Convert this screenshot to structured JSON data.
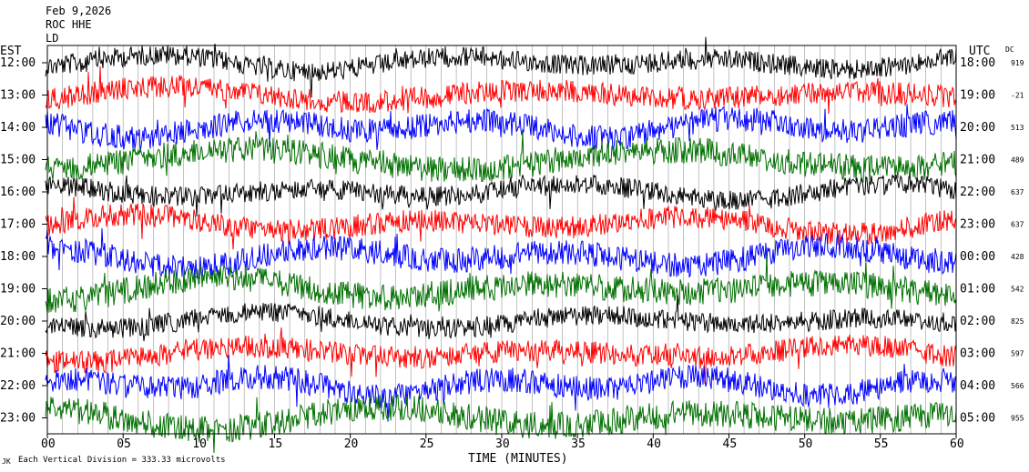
{
  "header": {
    "date": "Feb 9,2026",
    "station": "ROC HHE",
    "network": "LD"
  },
  "chart_data": {
    "type": "line",
    "title": "",
    "xlabel": "TIME (MINUTES)",
    "ylabel_left": "EST",
    "ylabel_right": "UTC",
    "dc_label": "DC",
    "xlim": [
      0,
      60
    ],
    "x_ticks": [
      "00",
      "05",
      "10",
      "15",
      "20",
      "25",
      "30",
      "35",
      "40",
      "45",
      "50",
      "55",
      "60"
    ],
    "trace_colors": [
      "#000000",
      "#ff0000",
      "#0000ff",
      "#007000"
    ],
    "rows": [
      {
        "est": "12:00",
        "utc": "18:00",
        "dc": "919"
      },
      {
        "est": "13:00",
        "utc": "19:00",
        "dc": "-21"
      },
      {
        "est": "14:00",
        "utc": "20:00",
        "dc": "513"
      },
      {
        "est": "15:00",
        "utc": "21:00",
        "dc": "489"
      },
      {
        "est": "16:00",
        "utc": "22:00",
        "dc": "637"
      },
      {
        "est": "17:00",
        "utc": "23:00",
        "dc": "637"
      },
      {
        "est": "18:00",
        "utc": "00:00",
        "dc": "428"
      },
      {
        "est": "19:00",
        "utc": "01:00",
        "dc": "542"
      },
      {
        "est": "20:00",
        "utc": "02:00",
        "dc": "825"
      },
      {
        "est": "21:00",
        "utc": "03:00",
        "dc": "597"
      },
      {
        "est": "22:00",
        "utc": "04:00",
        "dc": "566"
      },
      {
        "est": "23:00",
        "utc": "05:00",
        "dc": "955"
      }
    ],
    "scale_note": "Each Vertical Division = 333.33 microvolts",
    "corner_mark": "JK",
    "grid": true
  }
}
